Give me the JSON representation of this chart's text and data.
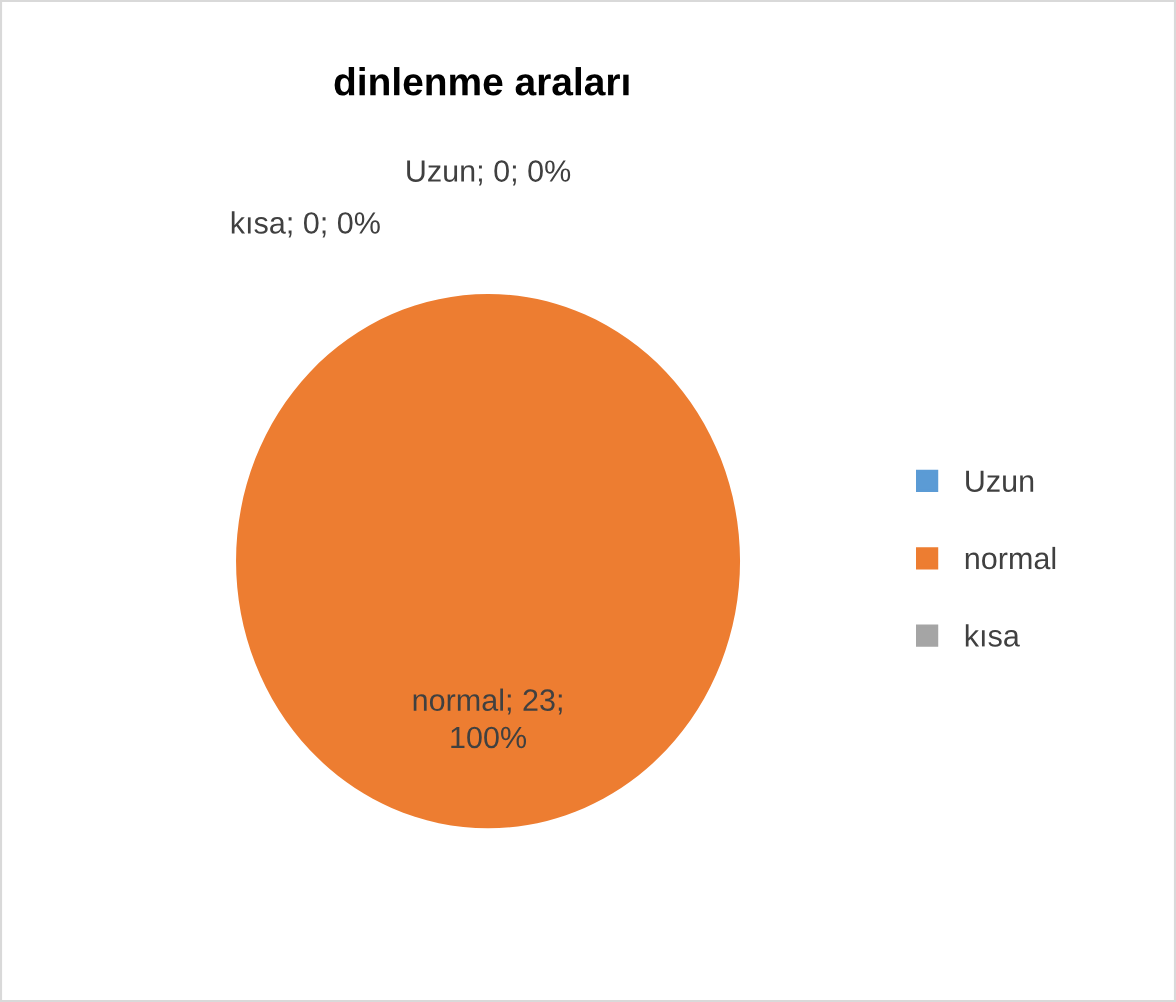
{
  "chart_data": {
    "type": "pie",
    "title": "dinlenme araları",
    "categories": [
      "Uzun",
      "normal",
      "kısa"
    ],
    "values": [
      0,
      23,
      0
    ],
    "colors": [
      "#5b9bd5",
      "#ed7d31",
      "#a5a5a5"
    ],
    "value_labels": [
      "Uzun; 0; 0%",
      "normal; 23;\n100%",
      "kısa; 0; 0%"
    ],
    "legend": "right"
  }
}
